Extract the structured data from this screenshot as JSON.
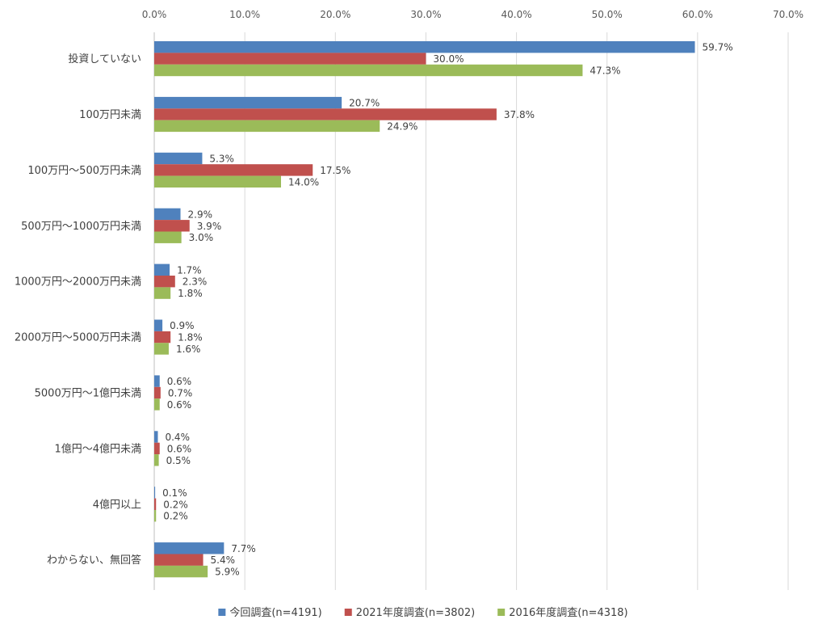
{
  "chart_data": {
    "type": "bar",
    "orientation": "horizontal",
    "categories": [
      "投資していない",
      "100万円未満",
      "100万円～500万円未満",
      "500万円～1000万円未満",
      "1000万円～2000万円未満",
      "2000万円～5000万円未満",
      "5000万円～1億円未満",
      "1億円～4億円未満",
      "4億円以上",
      "わからない、無回答"
    ],
    "series": [
      {
        "name": "今回調査(n=4191)",
        "color": "#4F81BD",
        "values": [
          59.7,
          20.7,
          5.3,
          2.9,
          1.7,
          0.9,
          0.6,
          0.4,
          0.1,
          7.7
        ],
        "labels": [
          "59.7%",
          "20.7%",
          "5.3%",
          "2.9%",
          "1.7%",
          "0.9%",
          "0.6%",
          "0.4%",
          "0.1%",
          "7.7%"
        ]
      },
      {
        "name": "2021年度調査(n=3802)",
        "color": "#C0504D",
        "values": [
          30.0,
          37.8,
          17.5,
          3.9,
          2.3,
          1.8,
          0.7,
          0.6,
          0.2,
          5.4
        ],
        "labels": [
          "30.0%",
          "37.8%",
          "17.5%",
          "3.9%",
          "2.3%",
          "1.8%",
          "0.7%",
          "0.6%",
          "0.2%",
          "5.4%"
        ]
      },
      {
        "name": "2016年度調査(n=4318)",
        "color": "#9BBB59",
        "values": [
          47.3,
          24.9,
          14.0,
          3.0,
          1.8,
          1.6,
          0.6,
          0.5,
          0.2,
          5.9
        ],
        "labels": [
          "47.3%",
          "24.9%",
          "14.0%",
          "3.0%",
          "1.8%",
          "1.6%",
          "0.6%",
          "0.5%",
          "0.2%",
          "5.9%"
        ]
      }
    ],
    "xlim": [
      0,
      70
    ],
    "xticks": [
      0,
      10,
      20,
      30,
      40,
      50,
      60,
      70
    ],
    "xtick_labels": [
      "0.0%",
      "10.0%",
      "20.0%",
      "30.0%",
      "40.0%",
      "50.0%",
      "60.0%",
      "70.0%"
    ],
    "x_axis_position": "top",
    "grid": true,
    "legend_position": "bottom",
    "title": "",
    "xlabel": "",
    "ylabel": ""
  }
}
